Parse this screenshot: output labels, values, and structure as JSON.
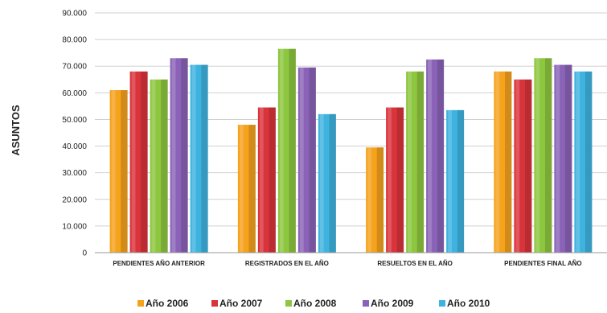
{
  "chart_data": {
    "type": "bar",
    "title": "",
    "xlabel": "",
    "ylabel": "ASUNTOS",
    "ylim": [
      0,
      90000
    ],
    "yticks": [
      "0",
      "10.000",
      "20.000",
      "30.000",
      "40.000",
      "50.000",
      "60.000",
      "70.000",
      "80.000",
      "90.000"
    ],
    "grid": true,
    "legend_position": "bottom",
    "categories": [
      "PENDIENTES AÑO ANTERIOR",
      "REGISTRADOS EN EL AÑO",
      "RESUELTOS EN EL AÑO",
      "PENDIENTES FINAL AÑO"
    ],
    "series": [
      {
        "name": "Año 2006",
        "color": "#f5a21c",
        "values": [
          61000,
          48000,
          39500,
          68000
        ]
      },
      {
        "name": "Año 2007",
        "color": "#d9333b",
        "values": [
          68000,
          54500,
          54500,
          65000
        ]
      },
      {
        "name": "Año 2008",
        "color": "#8dc63f",
        "values": [
          65000,
          76500,
          68000,
          73000
        ]
      },
      {
        "name": "Año 2009",
        "color": "#8a63b8",
        "values": [
          73000,
          69500,
          72500,
          70500
        ]
      },
      {
        "name": "Año 2010",
        "color": "#3fb3e0",
        "values": [
          70500,
          52000,
          53500,
          68000
        ]
      }
    ]
  }
}
